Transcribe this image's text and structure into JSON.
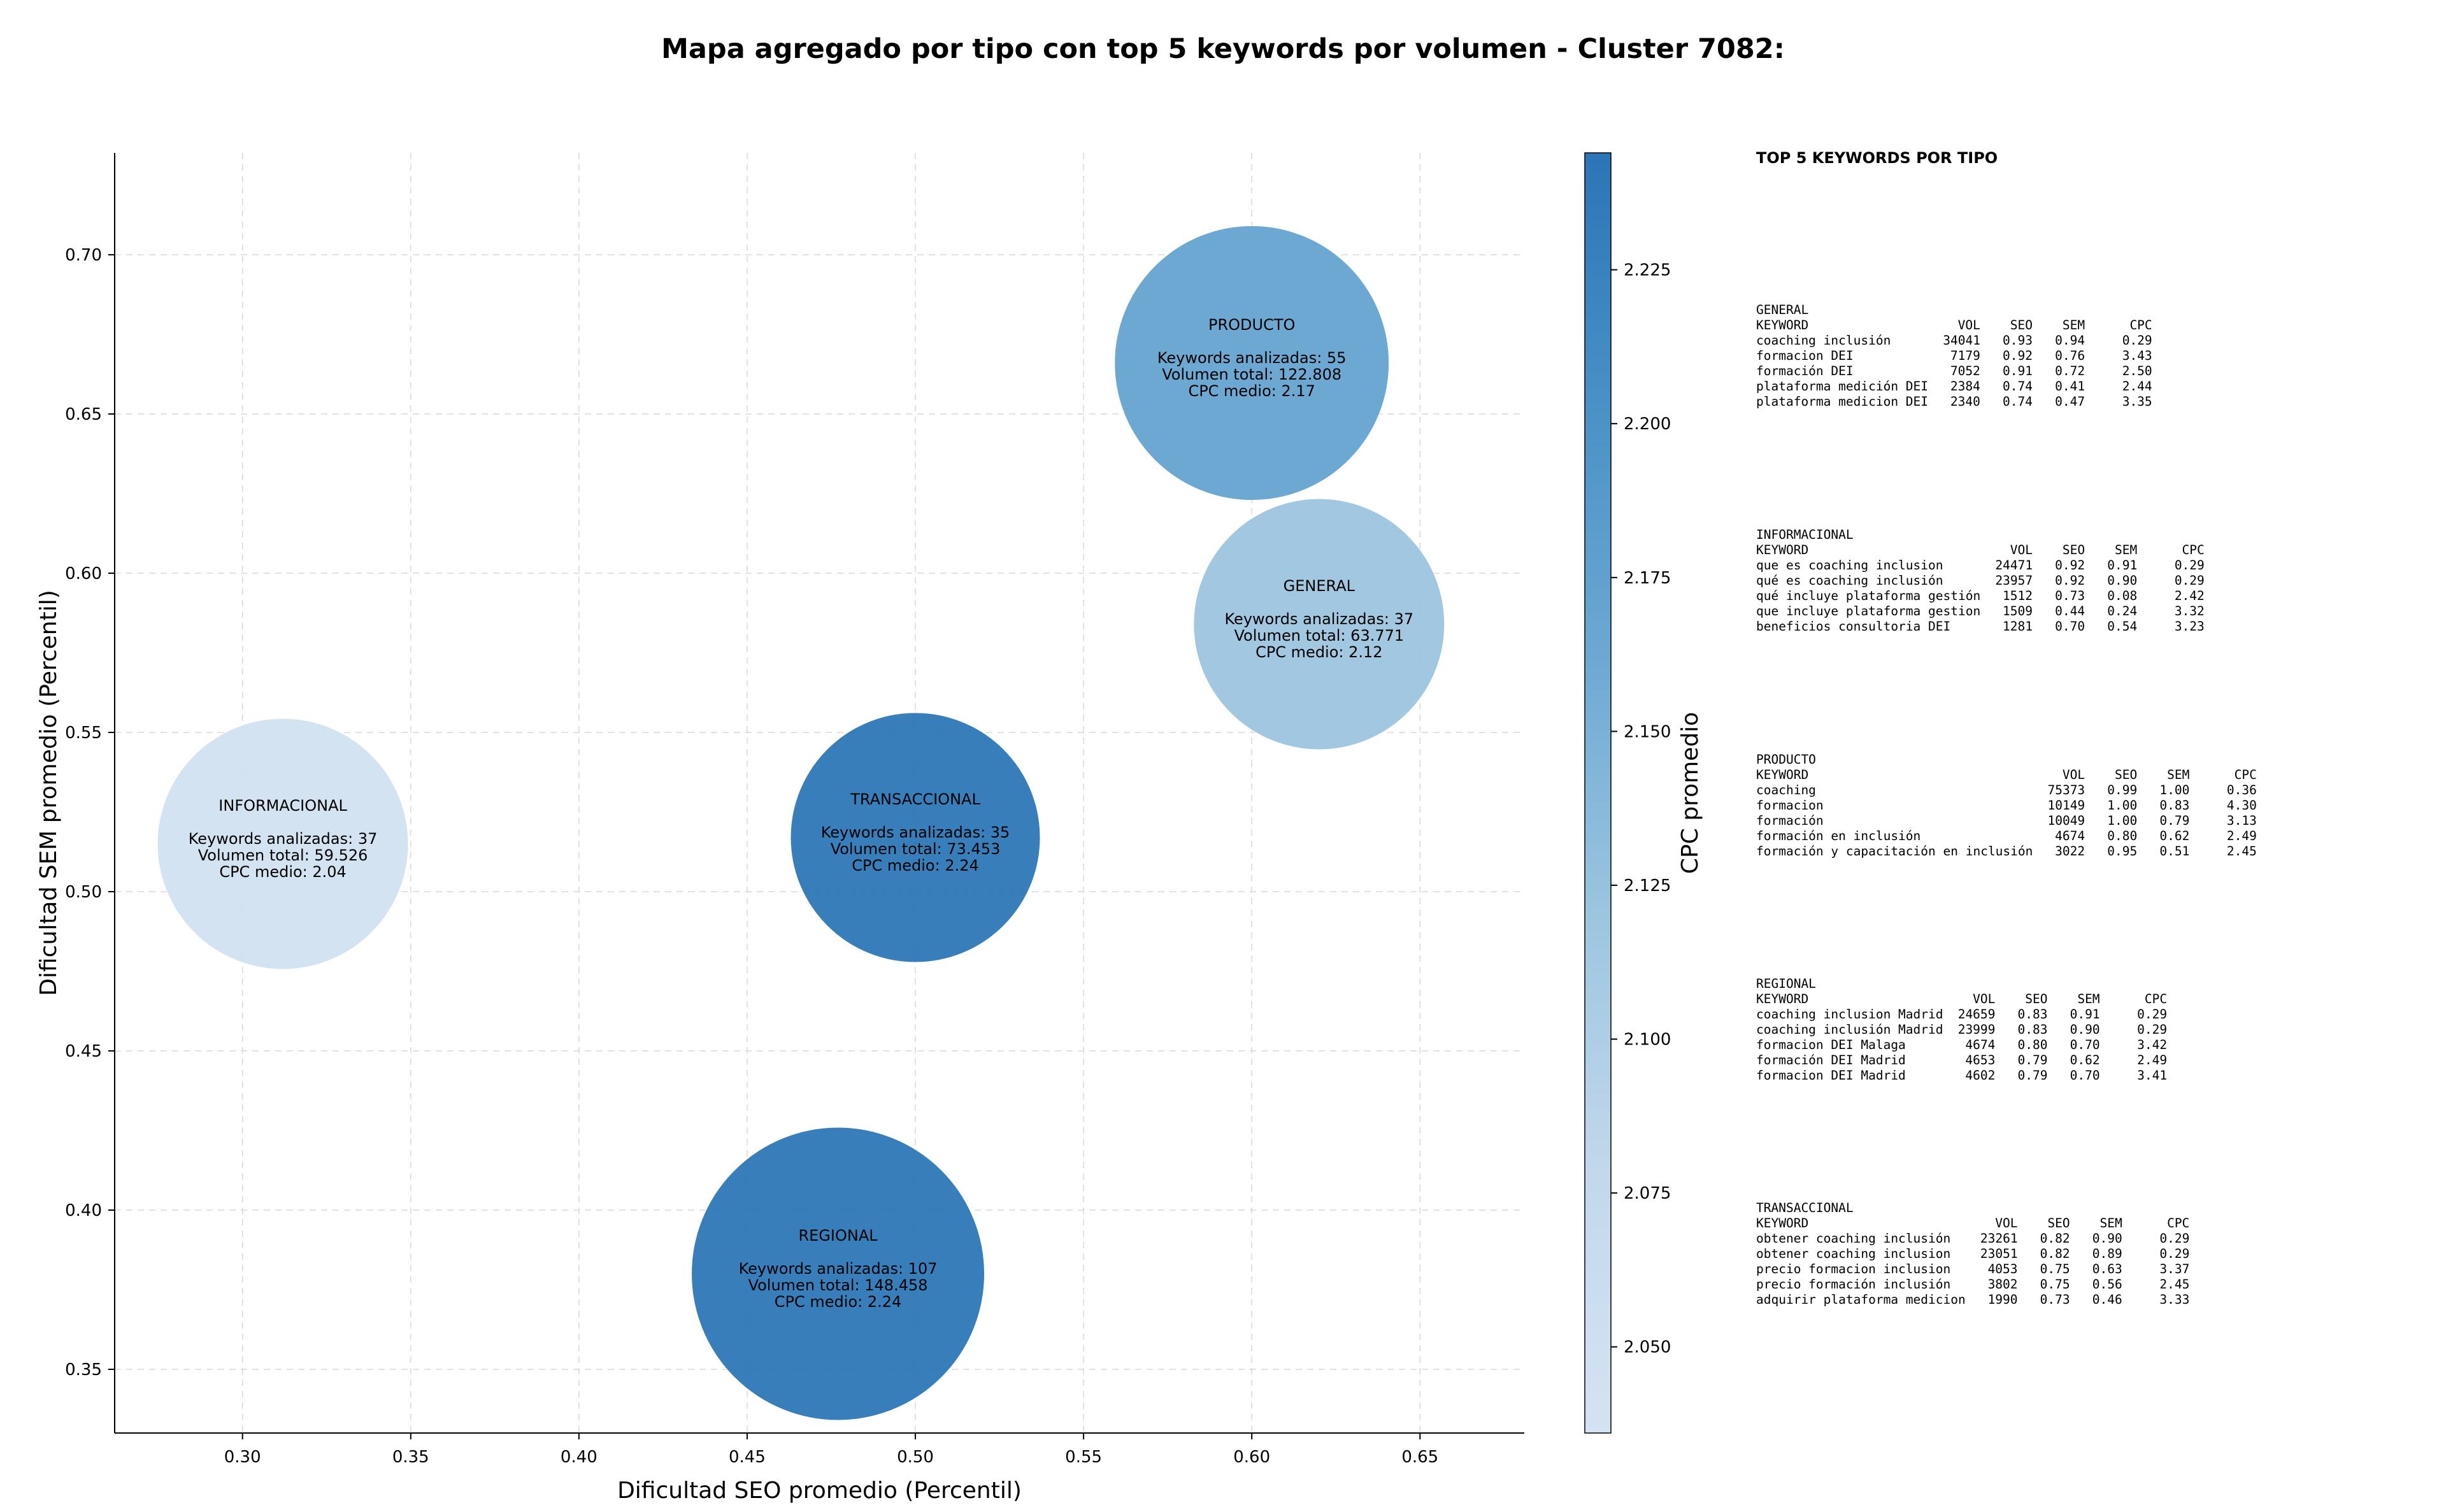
{
  "title": "Mapa agregado por tipo con top 5 keywords por volumen - Cluster 7082:",
  "chart_data": {
    "type": "scatter",
    "subtype": "bubble",
    "xlabel": "Dificultad SEO promedio (Percentil)",
    "ylabel": "Dificultad SEM promedio (Percentil)",
    "xlim": [
      0.262,
      0.681
    ],
    "ylim": [
      0.33,
      0.732
    ],
    "xticks": [
      0.3,
      0.35,
      0.4,
      0.45,
      0.5,
      0.55,
      0.6,
      0.65
    ],
    "yticks": [
      0.35,
      0.4,
      0.45,
      0.5,
      0.55,
      0.6,
      0.65,
      0.7
    ],
    "grid": true,
    "colorbar": {
      "label": "CPC promedio",
      "range": [
        2.036,
        2.244
      ],
      "ticks": [
        2.05,
        2.075,
        2.1,
        2.125,
        2.15,
        2.175,
        2.2,
        2.225
      ],
      "colormap": [
        "#d4e3f3",
        "#c3d8ed",
        "#9dc6e0",
        "#6ea9d3",
        "#4a91c6",
        "#2b75b7"
      ]
    },
    "bubbles": [
      {
        "name": "PRODUCTO",
        "x": 0.6,
        "y": 0.666,
        "keywords": 55,
        "volume": "122.808",
        "cpc": 2.17,
        "line_keywords": "Keywords analizadas: 55",
        "line_volume": "Volumen total: 122.808",
        "line_cpc": "CPC medio: 2.17"
      },
      {
        "name": "GENERAL",
        "x": 0.62,
        "y": 0.584,
        "keywords": 37,
        "volume": "63.771",
        "cpc": 2.12,
        "line_keywords": "Keywords analizadas: 37",
        "line_volume": "Volumen total: 63.771",
        "line_cpc": "CPC medio: 2.12"
      },
      {
        "name": "INFORMACIONAL",
        "x": 0.312,
        "y": 0.515,
        "keywords": 37,
        "volume": "59.526",
        "cpc": 2.04,
        "line_keywords": "Keywords analizadas: 37",
        "line_volume": "Volumen total: 59.526",
        "line_cpc": "CPC medio: 2.04"
      },
      {
        "name": "TRANSACCIONAL",
        "x": 0.5,
        "y": 0.517,
        "keywords": 35,
        "volume": "73.453",
        "cpc": 2.24,
        "line_keywords": "Keywords analizadas: 35",
        "line_volume": "Volumen total: 73.453",
        "line_cpc": "CPC medio: 2.24"
      },
      {
        "name": "REGIONAL",
        "x": 0.477,
        "y": 0.38,
        "keywords": 107,
        "volume": "148.458",
        "cpc": 2.24,
        "line_keywords": "Keywords analizadas: 107",
        "line_volume": "Volumen total: 148.458",
        "line_cpc": "CPC medio: 2.24"
      }
    ]
  },
  "top_keywords": {
    "heading": "TOP 5 KEYWORDS POR TIPO",
    "columns": {
      "keyword": "KEYWORD",
      "vol": "VOL",
      "seo": "SEO",
      "sem": "SEM",
      "cpc": "CPC"
    },
    "sections": [
      {
        "type": "GENERAL",
        "rows": [
          {
            "kw": "coaching inclusión",
            "vol": "34041",
            "seo": "0.93",
            "sem": "0.94",
            "cpc": "0.29"
          },
          {
            "kw": "formacion DEI",
            "vol": "7179",
            "seo": "0.92",
            "sem": "0.76",
            "cpc": "3.43"
          },
          {
            "kw": "formación DEI",
            "vol": "7052",
            "seo": "0.91",
            "sem": "0.72",
            "cpc": "2.50"
          },
          {
            "kw": "plataforma medición DEI",
            "vol": "2384",
            "seo": "0.74",
            "sem": "0.41",
            "cpc": "2.44"
          },
          {
            "kw": "plataforma medicion DEI",
            "vol": "2340",
            "seo": "0.74",
            "sem": "0.47",
            "cpc": "3.35"
          }
        ]
      },
      {
        "type": "INFORMACIONAL",
        "rows": [
          {
            "kw": "que es coaching inclusion",
            "vol": "24471",
            "seo": "0.92",
            "sem": "0.91",
            "cpc": "0.29"
          },
          {
            "kw": "qué es coaching inclusión",
            "vol": "23957",
            "seo": "0.92",
            "sem": "0.90",
            "cpc": "0.29"
          },
          {
            "kw": "qué incluye plataforma gestión",
            "vol": "1512",
            "seo": "0.73",
            "sem": "0.08",
            "cpc": "2.42"
          },
          {
            "kw": "que incluye plataforma gestion",
            "vol": "1509",
            "seo": "0.44",
            "sem": "0.24",
            "cpc": "3.32"
          },
          {
            "kw": "beneficios consultoria DEI",
            "vol": "1281",
            "seo": "0.70",
            "sem": "0.54",
            "cpc": "3.23"
          }
        ]
      },
      {
        "type": "PRODUCTO",
        "rows": [
          {
            "kw": "coaching",
            "vol": "75373",
            "seo": "0.99",
            "sem": "1.00",
            "cpc": "0.36"
          },
          {
            "kw": "formacion",
            "vol": "10149",
            "seo": "1.00",
            "sem": "0.83",
            "cpc": "4.30"
          },
          {
            "kw": "formación",
            "vol": "10049",
            "seo": "1.00",
            "sem": "0.79",
            "cpc": "3.13"
          },
          {
            "kw": "formación en inclusión",
            "vol": "4674",
            "seo": "0.80",
            "sem": "0.62",
            "cpc": "2.49"
          },
          {
            "kw": "formación y capacitación en inclusión",
            "vol": "3022",
            "seo": "0.95",
            "sem": "0.51",
            "cpc": "2.45"
          }
        ]
      },
      {
        "type": "REGIONAL",
        "rows": [
          {
            "kw": "coaching inclusion Madrid",
            "vol": "24659",
            "seo": "0.83",
            "sem": "0.91",
            "cpc": "0.29"
          },
          {
            "kw": "coaching inclusión Madrid",
            "vol": "23999",
            "seo": "0.83",
            "sem": "0.90",
            "cpc": "0.29"
          },
          {
            "kw": "formacion DEI Malaga",
            "vol": "4674",
            "seo": "0.80",
            "sem": "0.70",
            "cpc": "3.42"
          },
          {
            "kw": "formación DEI Madrid",
            "vol": "4653",
            "seo": "0.79",
            "sem": "0.62",
            "cpc": "2.49"
          },
          {
            "kw": "formacion DEI Madrid",
            "vol": "4602",
            "seo": "0.79",
            "sem": "0.70",
            "cpc": "3.41"
          }
        ]
      },
      {
        "type": "TRANSACCIONAL",
        "rows": [
          {
            "kw": "obtener coaching inclusión",
            "vol": "23261",
            "seo": "0.82",
            "sem": "0.90",
            "cpc": "0.29"
          },
          {
            "kw": "obtener coaching inclusion",
            "vol": "23051",
            "seo": "0.82",
            "sem": "0.89",
            "cpc": "0.29"
          },
          {
            "kw": "precio formacion inclusion",
            "vol": "4053",
            "seo": "0.75",
            "sem": "0.63",
            "cpc": "3.37"
          },
          {
            "kw": "precio formación inclusión",
            "vol": "3802",
            "seo": "0.75",
            "sem": "0.56",
            "cpc": "2.45"
          },
          {
            "kw": "adquirir plataforma medicion",
            "vol": "1990",
            "seo": "0.73",
            "sem": "0.46",
            "cpc": "3.33"
          }
        ]
      }
    ]
  }
}
